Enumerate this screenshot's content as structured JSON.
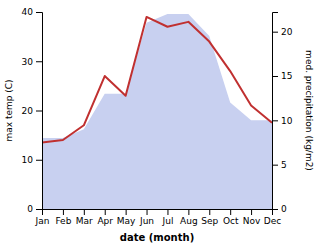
{
  "chart_data": {
    "type": "line",
    "categories": [
      "Jan",
      "Feb",
      "Mar",
      "Apr",
      "May",
      "Jun",
      "Jul",
      "Aug",
      "Sep",
      "Oct",
      "Nov",
      "Dec"
    ],
    "xlabel": "date (month)",
    "ylabel": "max temp (C)",
    "y2label": "med. precipitation (kg/m2)",
    "ylim": [
      0,
      40
    ],
    "yticks": [
      0,
      10,
      20,
      30,
      40
    ],
    "y2lim": [
      0,
      22.22
    ],
    "y2ticks": [
      0,
      5,
      10,
      15,
      20
    ],
    "series": [
      {
        "type": "area",
        "axis": "y2",
        "color": "#c8d0f0",
        "values": [
          8.0,
          8.0,
          9.0,
          13.0,
          13.0,
          21.0,
          22.0,
          22.0,
          19.5,
          12.0,
          10.0,
          10.0
        ]
      },
      {
        "type": "line",
        "color": "#c03030",
        "values": [
          13.5,
          14.0,
          17.0,
          27.0,
          23.0,
          39.0,
          37.0,
          38.0,
          34.0,
          28.0,
          21.0,
          17.5
        ]
      }
    ]
  }
}
